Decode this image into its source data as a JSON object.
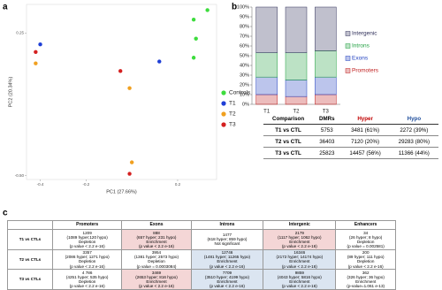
{
  "panel_labels": [
    "a",
    "b",
    "c"
  ],
  "chart_data": [
    {
      "type": "scatter",
      "xlabel": "PC1 (27.66%)",
      "ylabel": "PC2 (20.34%)",
      "xlim": [
        -0.46,
        0.37
      ],
      "ylim": [
        -0.52,
        0.4
      ],
      "xticks": [
        -0.4,
        -0.2,
        0.2
      ],
      "yticks": [
        0.25,
        {
          "value": -0.5,
          "label": "-0.50"
        }
      ],
      "legend": "right",
      "series": [
        {
          "name": "Controls",
          "color": "#3ddc3d",
          "x": [
            0.33,
            0.27,
            0.28,
            0.27
          ],
          "y": [
            0.37,
            0.32,
            0.22,
            0.12
          ]
        },
        {
          "name": "T1",
          "color": "#1f3fd6",
          "x": [
            -0.4,
            0.12
          ],
          "y": [
            0.19,
            0.1
          ]
        },
        {
          "name": "T2",
          "color": "#f0a020",
          "x": [
            -0.42,
            -0.01,
            0.0
          ],
          "y": [
            0.09,
            -0.04,
            -0.43
          ]
        },
        {
          "name": "T3",
          "color": "#d42020",
          "x": [
            -0.42,
            -0.05,
            -0.01
          ],
          "y": [
            0.15,
            0.05,
            -0.49
          ]
        }
      ]
    },
    {
      "type": "bar",
      "stacked": true,
      "categories": [
        "T1",
        "T2",
        "T3"
      ],
      "ylim": [
        0,
        100
      ],
      "yticks": [
        {
          "value": 0,
          "label": "0%"
        },
        {
          "value": 10,
          "label": "10%"
        },
        {
          "value": 20,
          "label": "20%"
        },
        {
          "value": 30,
          "label": "30%"
        },
        {
          "value": 40,
          "label": "40%"
        },
        {
          "value": 50,
          "label": "50%"
        },
        {
          "value": 60,
          "label": "60%"
        },
        {
          "value": 70,
          "label": "70%"
        },
        {
          "value": 80,
          "label": "80%"
        },
        {
          "value": 90,
          "label": "90%"
        },
        {
          "value": 100,
          "label": "100%"
        }
      ],
      "legend": "right",
      "series": [
        {
          "name": "Promoters",
          "color": "#c02020",
          "values": [
            10,
            8,
            10
          ]
        },
        {
          "name": "Exons",
          "color": "#2040c0",
          "values": [
            18,
            17,
            18
          ]
        },
        {
          "name": "Introns",
          "color": "#20a040",
          "values": [
            25,
            28,
            27
          ]
        },
        {
          "name": "Intergenic",
          "color": "#30305a",
          "values": [
            47,
            47,
            45
          ]
        }
      ]
    }
  ],
  "dmr_table": {
    "header": [
      "Comparison",
      "DMRs",
      "Hyper",
      "Hypo"
    ],
    "header_colors": [
      "#000000",
      "#000000",
      "#c00000",
      "#1f4e9c"
    ],
    "rows": [
      [
        "T1 vs CTL",
        "5753",
        "3481 (61%)",
        "2272 (39%)"
      ],
      [
        "T2 vs CTL",
        "36403",
        "7120 (20%)",
        "29283 (80%)"
      ],
      [
        "T3 vs CTL",
        "25823",
        "14457 (56%)",
        "11366 (44%)"
      ]
    ]
  },
  "enrichment_table": {
    "header": [
      "Promoters",
      "Exons",
      "Introns",
      "Intergenic",
      "Enhancers"
    ],
    "rows": [
      {
        "label": "T1 vs CTLs",
        "shading": [
          "#ffffff",
          "#f4d6d6",
          "#ffffff",
          "#f4d6d6",
          "#ffffff"
        ],
        "cells": [
          [
            "1209",
            "(1089 hyper;120 hypo)",
            "Depletion",
            "(p value < 2.2 e-16)"
          ],
          [
            "888",
            "(657 hyper; 231 hypo)",
            "Enrichment",
            "(p value < 2.2 e-16)"
          ],
          [
            "1477",
            "(618 hyper; 859 hypo)",
            "Not significant"
          ],
          [
            "2179",
            "(1117 hyper; 1062 hypo)",
            "Enrichment",
            "(p value < 2.2 e-16)"
          ],
          [
            "34",
            "(26 hyper; 8 hypo)",
            "Depletion",
            "(p value = 0.002581)"
          ]
        ]
      },
      {
        "label": "T2 vs CTLs",
        "shading": [
          "#ffffff",
          "#ffffff",
          "#dbe5f1",
          "#dbe5f1",
          "#ffffff"
        ],
        "cells": [
          [
            "3357",
            "(2086 hyper; 1271 hypo)",
            "Depletion",
            "(p value < 2.2 e-16)"
          ],
          [
            "3954",
            "(1381 hyper; 2573 hypo)",
            "Depletion",
            "(p value = 0.0003084)"
          ],
          [
            "12746",
            "(1481 hyper; 11265 hypo)",
            "Enrichment",
            "(p value < 2.2 e-16)"
          ],
          [
            "16346",
            "(2172 hyper; 14174 hypo)",
            "Enrichment",
            "(p value < 2.2 e-16)"
          ],
          [
            "200",
            "(89 hyper; 111 hypo)",
            "Depletion",
            "(p value < 2.2 e-16)"
          ]
        ]
      },
      {
        "label": "T3 vs CTLs",
        "shading": [
          "#ffffff",
          "#f4d6d6",
          "#dbe5f1",
          "#dbe5f1",
          "#ffffff"
        ],
        "cells": [
          [
            "4 786",
            "(4251 hyper; 535 hypo)",
            "Depletion",
            "(p value < 2.2 e-16)"
          ],
          [
            "3469",
            "(2653 hyper; 816 hypo)",
            "Enrichment",
            "(p value < 2.2 e-16)"
          ],
          [
            "7709",
            "(3510 hyper; 4199 hypo)",
            "Enrichment",
            "(p value < 2.2 e-16)"
          ],
          [
            "9859",
            "(4043 hyper; 5816 hypo)",
            "Enrichment",
            "(p value < 2.2 e-16)"
          ],
          [
            "362",
            "(326 hyper; 36 hypo)",
            "Enrichment",
            "(p-value=1.061 e-13)"
          ]
        ]
      }
    ]
  }
}
